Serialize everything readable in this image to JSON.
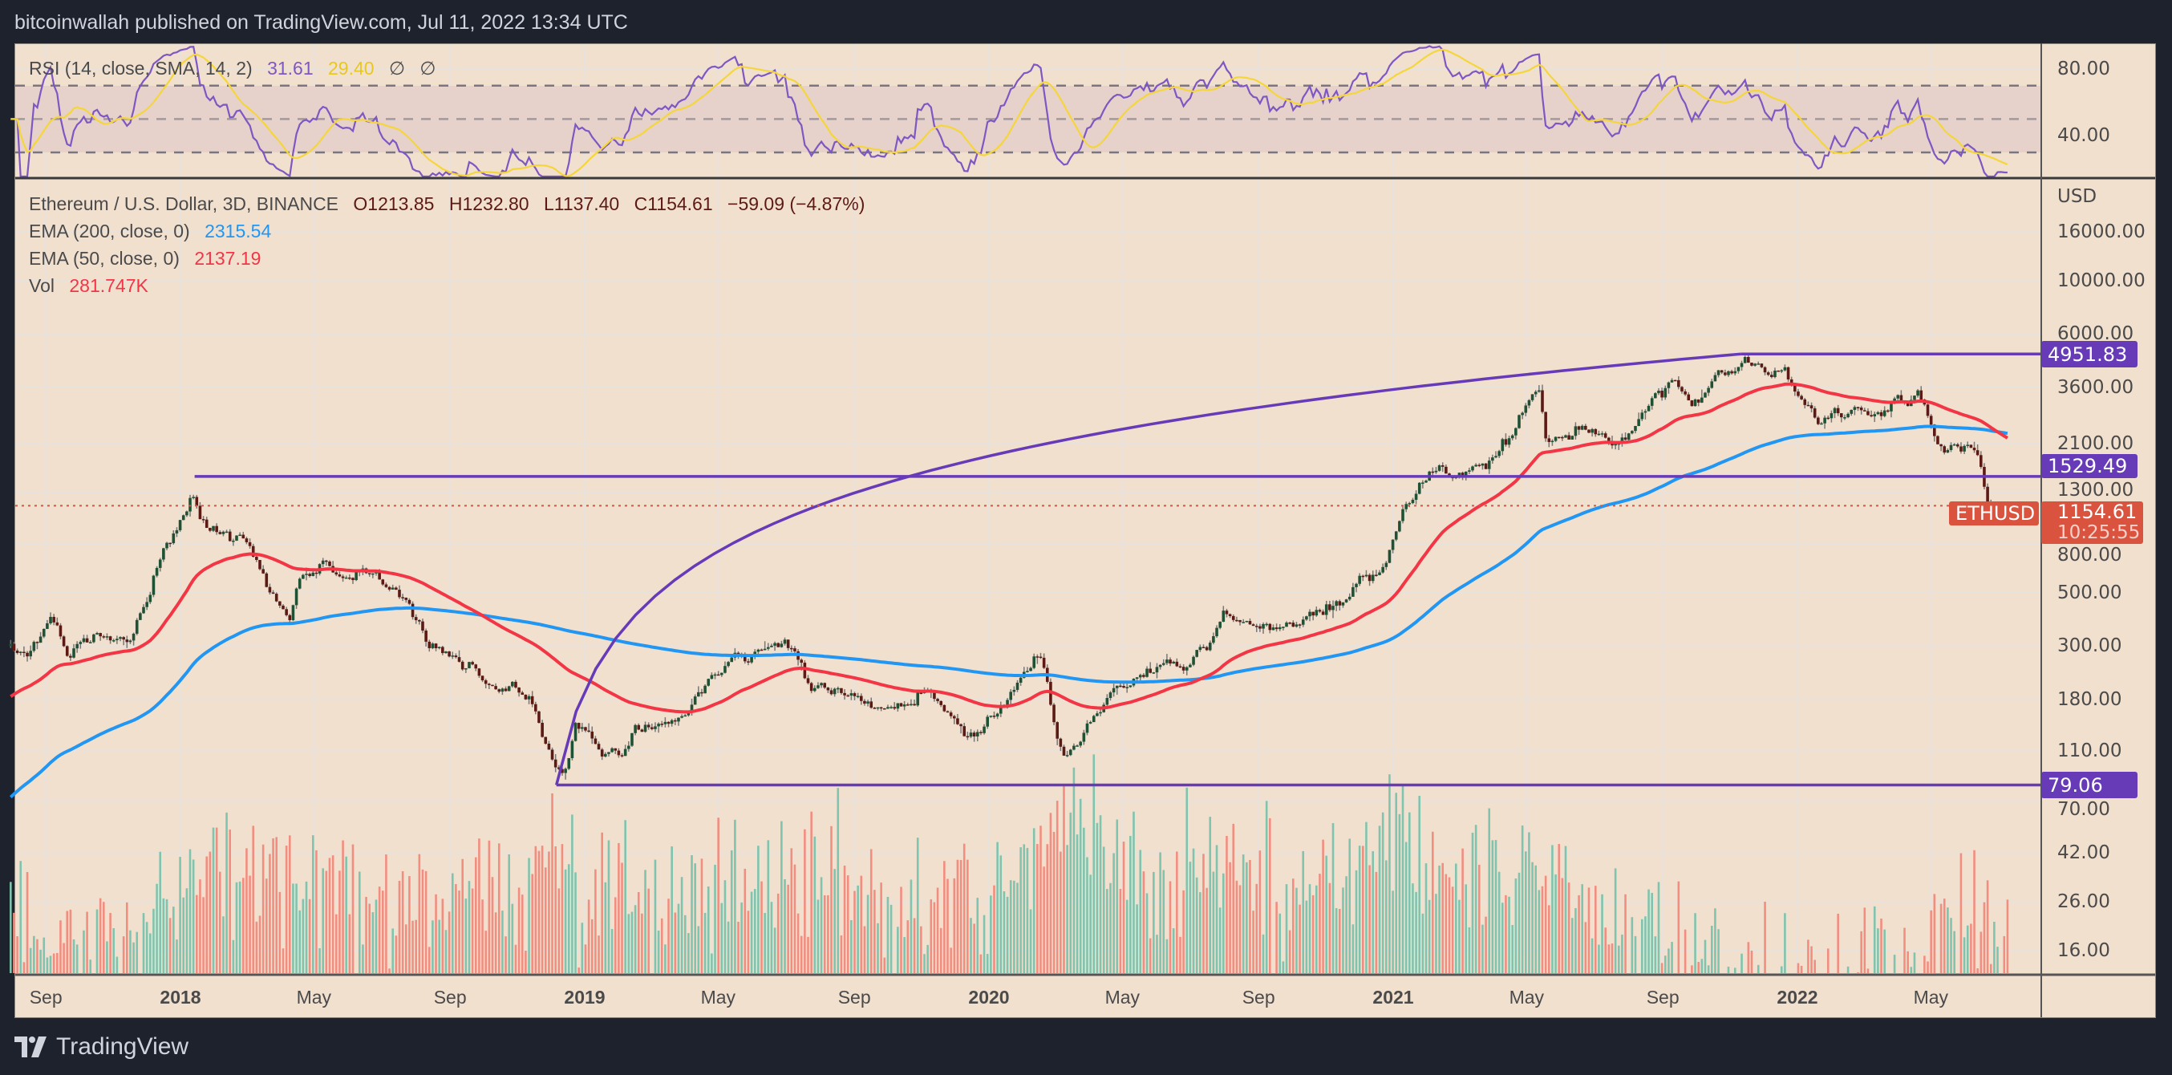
{
  "header": {
    "published": "bitcoinwallah published on TradingView.com, Jul 11, 2022 13:34 UTC"
  },
  "rsi_legend": {
    "title": "RSI (14, close, SMA, 14, 2)",
    "rsi_value": "31.61",
    "sma_value": "29.40",
    "flag1": "∅",
    "flag2": "∅"
  },
  "main_legend": {
    "symbol": "Ethereum / U.S. Dollar, 3D, BINANCE",
    "open": "O1213.85",
    "high": "H1232.80",
    "low": "L1137.40",
    "close": "C1154.61",
    "change": "−59.09 (−4.87%)",
    "ema200_label": "EMA (200, close, 0)",
    "ema200_value": "2315.54",
    "ema50_label": "EMA (50, close, 0)",
    "ema50_value": "2137.19",
    "vol_label": "Vol",
    "vol_value": "281.747K"
  },
  "price_axis": {
    "currency": "USD",
    "ticks": [
      "16000.00",
      "10000.00",
      "6000.00",
      "3600.00",
      "2100.00",
      "1300.00",
      "800.00",
      "500.00",
      "300.00",
      "180.00",
      "110.00"
    ],
    "volume_ticks": [
      "70.00",
      "42.00",
      "26.00",
      "16.00"
    ],
    "rsi_ticks": [
      "80.00",
      "40.00"
    ]
  },
  "tags": {
    "level_high": "4951.83",
    "level_mid": "1529.49",
    "level_low": "79.06",
    "symbol_tag": "ETHUSD",
    "last_price": "1154.61",
    "countdown": "10:25:55"
  },
  "time_axis": [
    {
      "label": "Sep",
      "date": 2017.667,
      "year": false
    },
    {
      "label": "2018",
      "date": 2018.0,
      "year": true
    },
    {
      "label": "May",
      "date": 2018.33,
      "year": false
    },
    {
      "label": "Sep",
      "date": 2018.667,
      "year": false
    },
    {
      "label": "2019",
      "date": 2019.0,
      "year": true
    },
    {
      "label": "May",
      "date": 2019.33,
      "year": false
    },
    {
      "label": "Sep",
      "date": 2019.667,
      "year": false
    },
    {
      "label": "2020",
      "date": 2020.0,
      "year": true
    },
    {
      "label": "May",
      "date": 2020.33,
      "year": false
    },
    {
      "label": "Sep",
      "date": 2020.667,
      "year": false
    },
    {
      "label": "2021",
      "date": 2021.0,
      "year": true
    },
    {
      "label": "May",
      "date": 2021.33,
      "year": false
    },
    {
      "label": "Sep",
      "date": 2021.667,
      "year": false
    },
    {
      "label": "2022",
      "date": 2022.0,
      "year": true
    },
    {
      "label": "May",
      "date": 2022.33,
      "year": false
    }
  ],
  "footer": {
    "brand": "TradingView"
  },
  "colors": {
    "up": "#1F5235",
    "down": "#5C1A14",
    "wick": "#777777",
    "ema50": "#F23645",
    "ema200": "#2196F3",
    "drawing": "#673AB7",
    "rsi": "#7E57C2",
    "rsi_sma": "#F5D63A",
    "vol_up": "#7FC4AE",
    "vol_down": "#F28E80",
    "last": "#D9533F"
  },
  "chart_data": {
    "type": "candlestick",
    "title": "Ethereum / U.S. Dollar, 3D, BINANCE",
    "yscale": "log",
    "ylim": [
      60,
      20000
    ],
    "xrange": [
      2017.58,
      2022.525
    ],
    "price_anchors": [
      [
        2017.58,
        300
      ],
      [
        2017.62,
        290
      ],
      [
        2017.68,
        380
      ],
      [
        2017.72,
        270
      ],
      [
        2017.8,
        300
      ],
      [
        2017.88,
        310
      ],
      [
        2017.92,
        450
      ],
      [
        2017.96,
        720
      ],
      [
        2018.03,
        1300
      ],
      [
        2018.05,
        1100
      ],
      [
        2018.08,
        1000
      ],
      [
        2018.1,
        850
      ],
      [
        2018.15,
        870
      ],
      [
        2018.2,
        560
      ],
      [
        2018.27,
        400
      ],
      [
        2018.3,
        650
      ],
      [
        2018.36,
        700
      ],
      [
        2018.42,
        520
      ],
      [
        2018.46,
        600
      ],
      [
        2018.55,
        450
      ],
      [
        2018.62,
        300
      ],
      [
        2018.7,
        230
      ],
      [
        2018.78,
        205
      ],
      [
        2018.86,
        180
      ],
      [
        2018.9,
        110
      ],
      [
        2018.95,
        85
      ],
      [
        2018.98,
        140
      ],
      [
        2019.05,
        120
      ],
      [
        2019.15,
        140
      ],
      [
        2019.25,
        165
      ],
      [
        2019.35,
        250
      ],
      [
        2019.45,
        300
      ],
      [
        2019.5,
        310
      ],
      [
        2019.55,
        220
      ],
      [
        2019.65,
        180
      ],
      [
        2019.75,
        175
      ],
      [
        2019.85,
        180
      ],
      [
        2019.92,
        135
      ],
      [
        2019.98,
        130
      ],
      [
        2020.08,
        220
      ],
      [
        2020.13,
        270
      ],
      [
        2020.18,
        110
      ],
      [
        2020.22,
        130
      ],
      [
        2020.3,
        200
      ],
      [
        2020.4,
        230
      ],
      [
        2020.48,
        240
      ],
      [
        2020.58,
        400
      ],
      [
        2020.68,
        350
      ],
      [
        2020.75,
        370
      ],
      [
        2020.85,
        450
      ],
      [
        2020.92,
        600
      ],
      [
        2020.98,
        730
      ],
      [
        2021.05,
        1300
      ],
      [
        2021.12,
        1800
      ],
      [
        2021.15,
        1500
      ],
      [
        2021.25,
        1800
      ],
      [
        2021.3,
        2400
      ],
      [
        2021.36,
        3800
      ],
      [
        2021.38,
        2200
      ],
      [
        2021.46,
        2500
      ],
      [
        2021.54,
        1900
      ],
      [
        2021.58,
        2300
      ],
      [
        2021.62,
        3000
      ],
      [
        2021.66,
        3300
      ],
      [
        2021.7,
        3700
      ],
      [
        2021.74,
        3000
      ],
      [
        2021.8,
        4100
      ],
      [
        2021.87,
        4700
      ],
      [
        2021.93,
        4000
      ],
      [
        2021.97,
        3900
      ],
      [
        2022.05,
        2500
      ],
      [
        2022.12,
        2900
      ],
      [
        2022.2,
        2600
      ],
      [
        2022.25,
        3400
      ],
      [
        2022.3,
        3000
      ],
      [
        2022.36,
        2000
      ],
      [
        2022.45,
        1800
      ],
      [
        2022.47,
        1100
      ],
      [
        2022.525,
        1154.61
      ]
    ],
    "volume_anchors": [
      [
        2017.58,
        15
      ],
      [
        2017.9,
        20
      ],
      [
        2018.0,
        35
      ],
      [
        2018.1,
        40
      ],
      [
        2018.3,
        28
      ],
      [
        2018.6,
        25
      ],
      [
        2018.9,
        35
      ],
      [
        2019.2,
        22
      ],
      [
        2019.5,
        35
      ],
      [
        2019.8,
        25
      ],
      [
        2020.1,
        30
      ],
      [
        2020.2,
        60
      ],
      [
        2020.4,
        25
      ],
      [
        2020.6,
        45
      ],
      [
        2020.75,
        28
      ],
      [
        2021.0,
        45
      ],
      [
        2021.2,
        40
      ],
      [
        2021.4,
        35
      ],
      [
        2021.55,
        20
      ],
      [
        2021.8,
        17
      ],
      [
        2022.0,
        14
      ],
      [
        2022.3,
        14
      ],
      [
        2022.45,
        25
      ],
      [
        2022.525,
        20
      ]
    ],
    "ema_seed": {
      "ema50": 180,
      "ema200": 68
    },
    "horizontal_levels": [
      {
        "price": 4951.83,
        "from": 2021.86
      },
      {
        "price": 1529.49,
        "from": 2018.035
      },
      {
        "price": 79.06,
        "from": 2018.93
      }
    ],
    "trendline": {
      "from": [
        2018.93,
        79.06
      ],
      "to": [
        2021.86,
        4951.83
      ]
    },
    "last_price": 1154.61,
    "rsi_levels": [
      70,
      50,
      30
    ]
  }
}
